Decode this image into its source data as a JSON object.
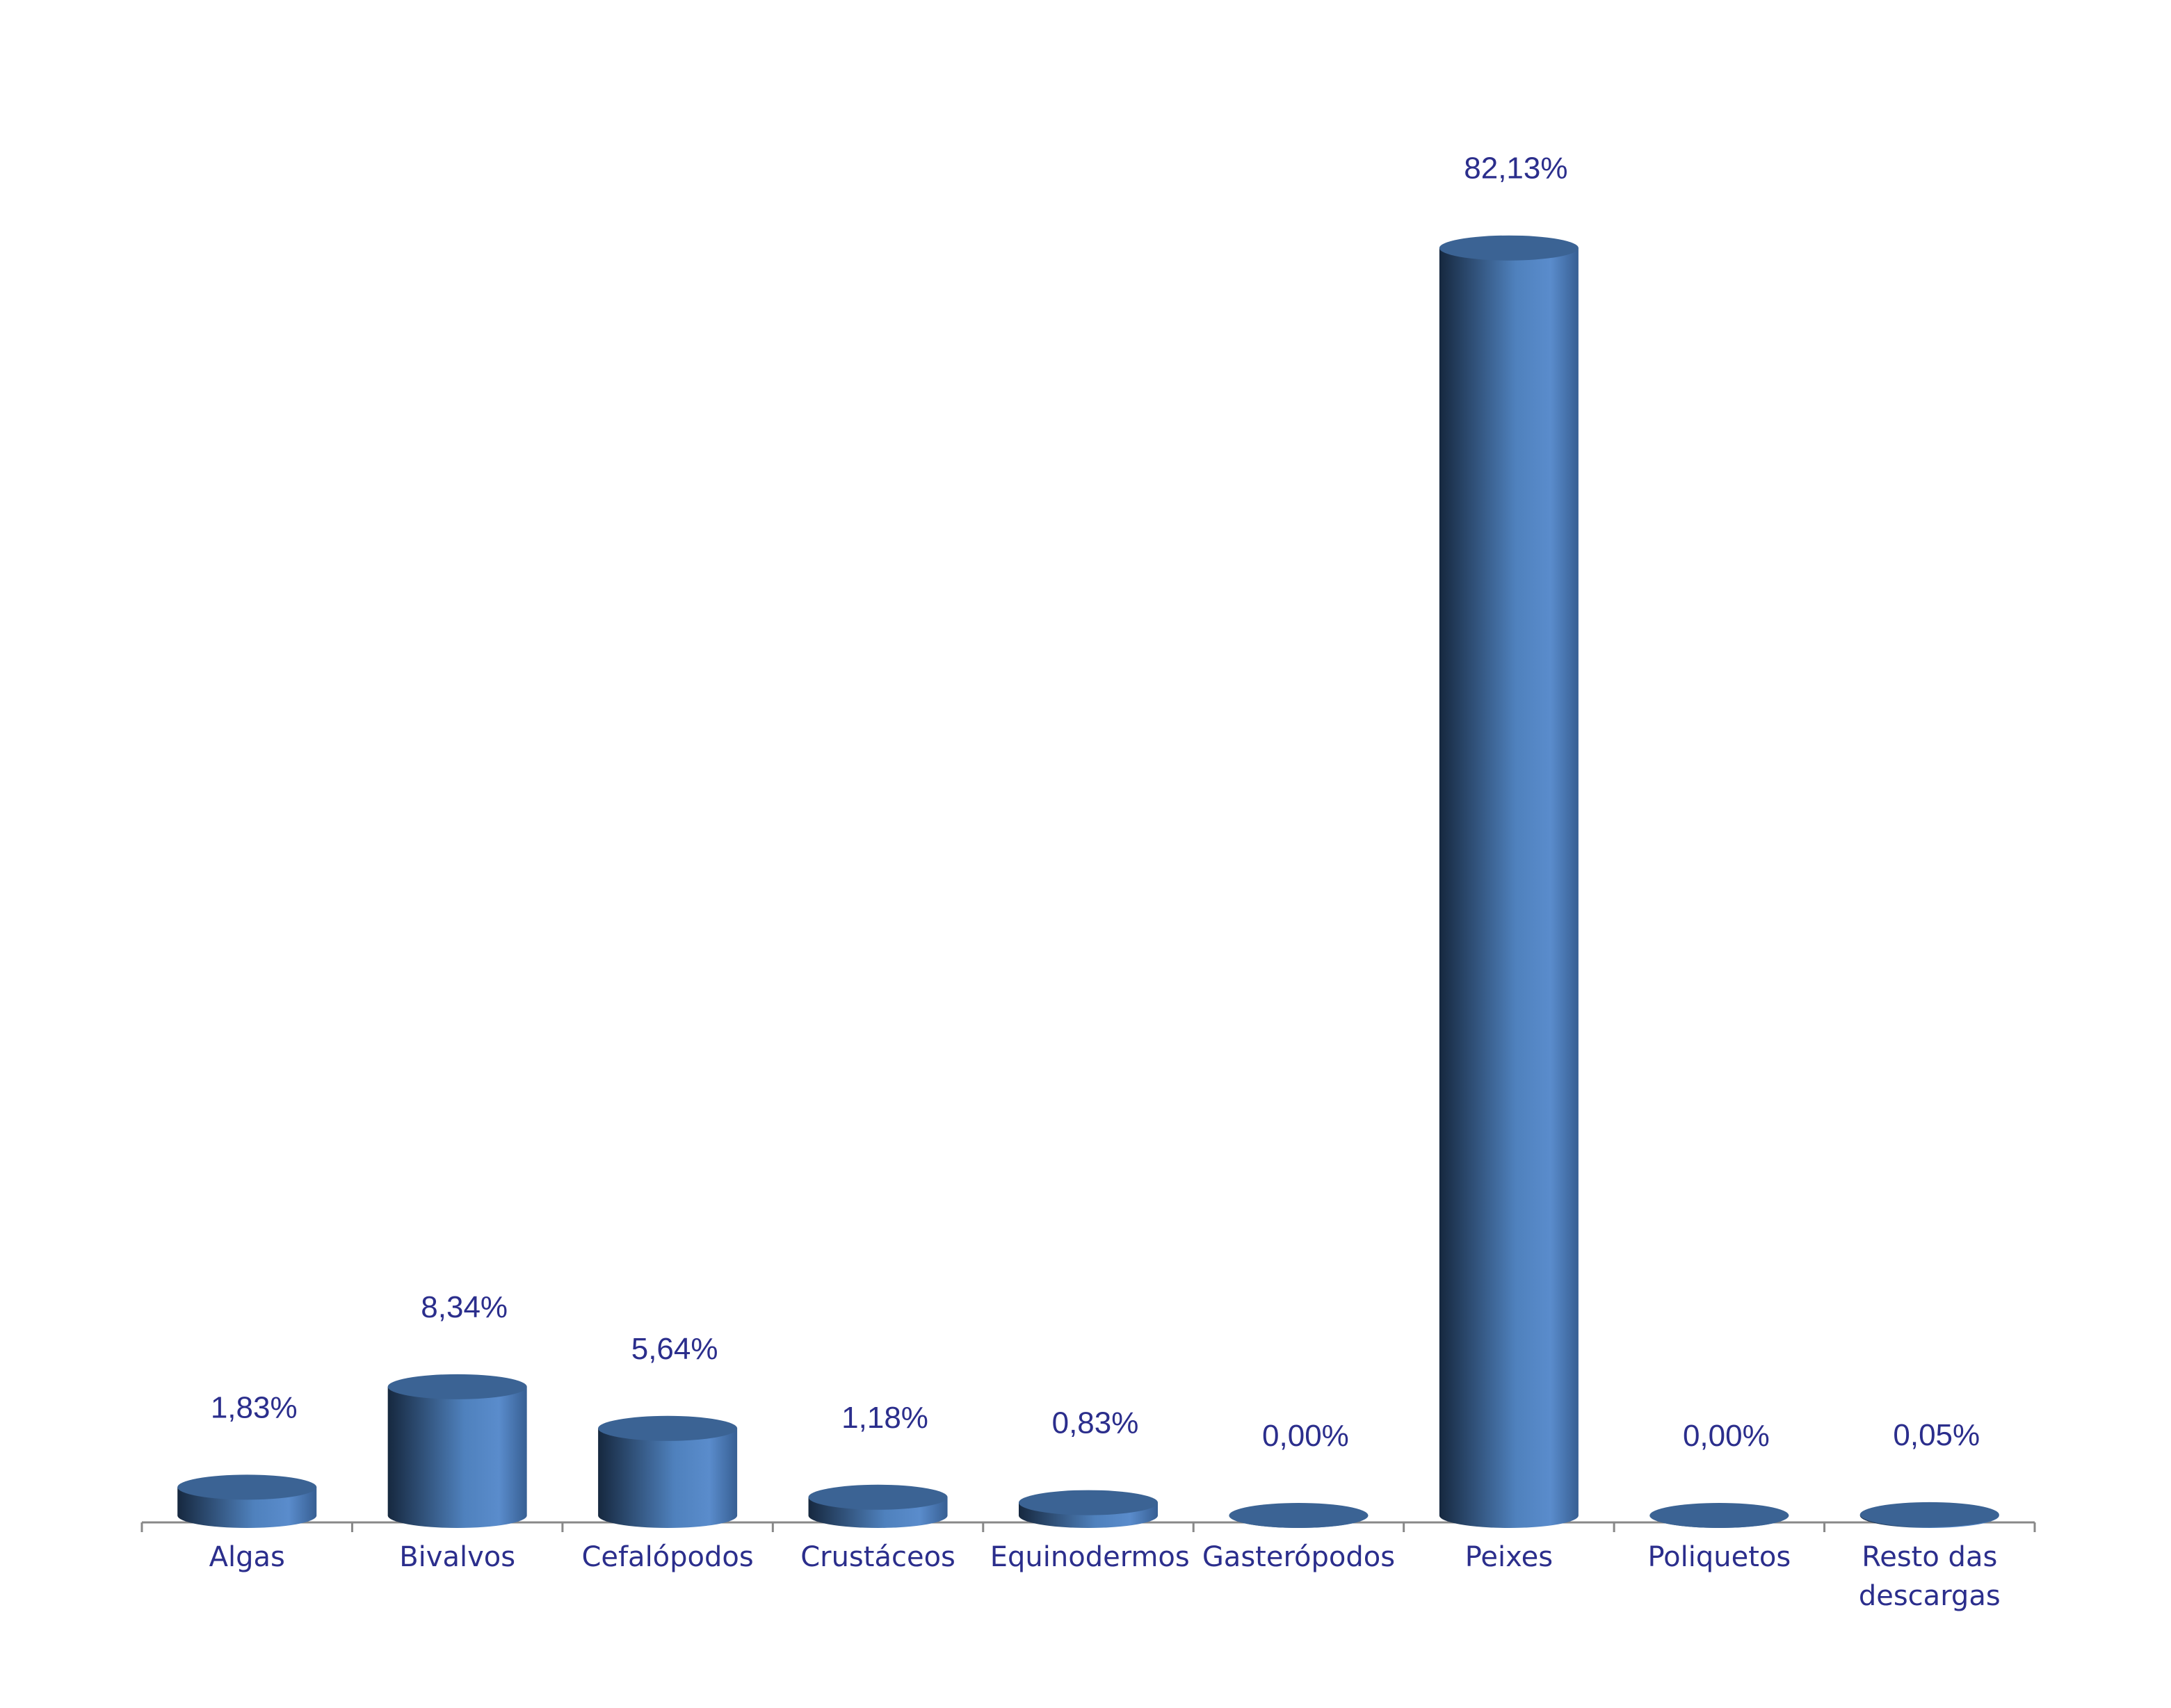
{
  "chart_data": {
    "type": "bar",
    "categories": [
      "Algas",
      "Bivalvos",
      "Cefalópodos",
      "Crustáceos",
      "Equinodermos",
      "Gasterópodos",
      "Peixes",
      "Poliquetos",
      "Resto das descargas"
    ],
    "values": [
      1.83,
      8.34,
      5.64,
      1.18,
      0.83,
      0.0,
      82.13,
      0.0,
      0.05
    ],
    "value_labels": [
      "1,83%",
      "8,34%",
      "5,64%",
      "1,18%",
      "0,83%",
      "0,00%",
      "82,13%",
      "0,00%",
      "0,05%"
    ],
    "color": "#4f81bd"
  }
}
